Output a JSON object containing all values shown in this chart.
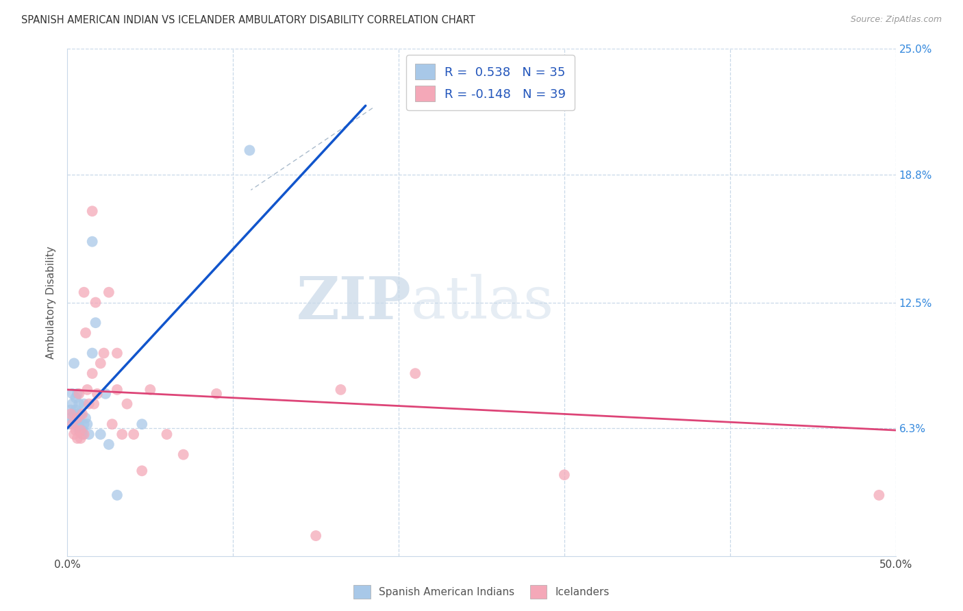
{
  "title": "SPANISH AMERICAN INDIAN VS ICELANDER AMBULATORY DISABILITY CORRELATION CHART",
  "source": "Source: ZipAtlas.com",
  "ylabel": "Ambulatory Disability",
  "xlim": [
    0.0,
    0.5
  ],
  "ylim": [
    0.0,
    0.25
  ],
  "ytick_labels_right": [
    "6.3%",
    "12.5%",
    "18.8%",
    "25.0%"
  ],
  "ytick_positions_right": [
    0.063,
    0.125,
    0.188,
    0.25
  ],
  "r_blue": 0.538,
  "n_blue": 35,
  "r_pink": -0.148,
  "n_pink": 39,
  "legend_label_blue": "Spanish American Indians",
  "legend_label_pink": "Icelanders",
  "color_blue": "#a8c8e8",
  "color_pink": "#f4a8b8",
  "line_color_blue": "#1155cc",
  "line_color_pink": "#dd4477",
  "blue_line_x": [
    0.0,
    0.18
  ],
  "blue_line_y": [
    0.063,
    0.222
  ],
  "pink_line_x": [
    0.0,
    0.5
  ],
  "pink_line_y": [
    0.082,
    0.062
  ],
  "blue_points_x": [
    0.001,
    0.002,
    0.002,
    0.003,
    0.003,
    0.004,
    0.004,
    0.005,
    0.005,
    0.005,
    0.006,
    0.006,
    0.006,
    0.007,
    0.007,
    0.007,
    0.007,
    0.008,
    0.008,
    0.009,
    0.009,
    0.01,
    0.01,
    0.011,
    0.012,
    0.013,
    0.015,
    0.017,
    0.02,
    0.023,
    0.025,
    0.03,
    0.045,
    0.11,
    0.015
  ],
  "blue_points_y": [
    0.065,
    0.072,
    0.068,
    0.075,
    0.08,
    0.095,
    0.07,
    0.065,
    0.072,
    0.078,
    0.065,
    0.07,
    0.08,
    0.065,
    0.062,
    0.068,
    0.075,
    0.062,
    0.07,
    0.062,
    0.06,
    0.065,
    0.075,
    0.068,
    0.065,
    0.06,
    0.1,
    0.115,
    0.06,
    0.08,
    0.055,
    0.03,
    0.065,
    0.2,
    0.155
  ],
  "pink_points_x": [
    0.002,
    0.003,
    0.004,
    0.005,
    0.006,
    0.006,
    0.007,
    0.008,
    0.008,
    0.009,
    0.01,
    0.01,
    0.011,
    0.012,
    0.013,
    0.015,
    0.015,
    0.016,
    0.017,
    0.018,
    0.02,
    0.022,
    0.025,
    0.027,
    0.03,
    0.03,
    0.033,
    0.036,
    0.04,
    0.045,
    0.05,
    0.06,
    0.07,
    0.09,
    0.15,
    0.165,
    0.21,
    0.3,
    0.49
  ],
  "pink_points_y": [
    0.07,
    0.065,
    0.06,
    0.062,
    0.068,
    0.058,
    0.08,
    0.058,
    0.062,
    0.07,
    0.06,
    0.13,
    0.11,
    0.082,
    0.075,
    0.17,
    0.09,
    0.075,
    0.125,
    0.08,
    0.095,
    0.1,
    0.13,
    0.065,
    0.1,
    0.082,
    0.06,
    0.075,
    0.06,
    0.042,
    0.082,
    0.06,
    0.05,
    0.08,
    0.01,
    0.082,
    0.09,
    0.04,
    0.03
  ]
}
